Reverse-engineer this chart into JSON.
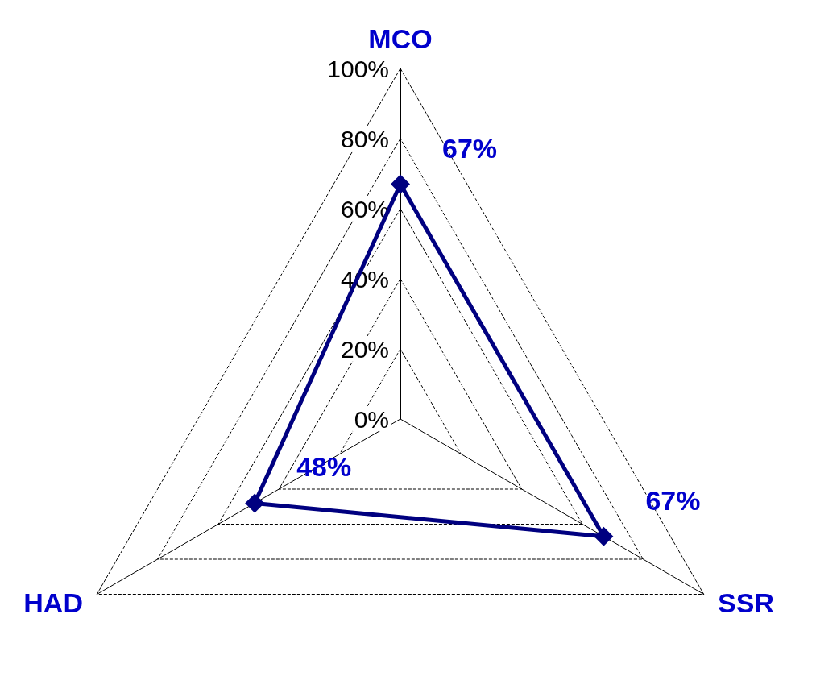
{
  "chart_data": {
    "type": "radar",
    "categories": [
      "MCO",
      "SSR",
      "HAD"
    ],
    "series": [
      {
        "color": "#000080",
        "values": [
          67,
          67,
          48
        ],
        "value_labels": [
          "67%",
          "67%",
          "48%"
        ]
      }
    ],
    "ylim": [
      0,
      100
    ],
    "yticks": [
      {
        "value": 0,
        "label": "0%"
      },
      {
        "value": 20,
        "label": "20%"
      },
      {
        "value": 40,
        "label": "40%"
      },
      {
        "value": 60,
        "label": "60%"
      },
      {
        "value": 80,
        "label": "80%"
      },
      {
        "value": 100,
        "label": "100%"
      }
    ],
    "grid": true,
    "marker": "diamond",
    "line_style": "solid"
  }
}
